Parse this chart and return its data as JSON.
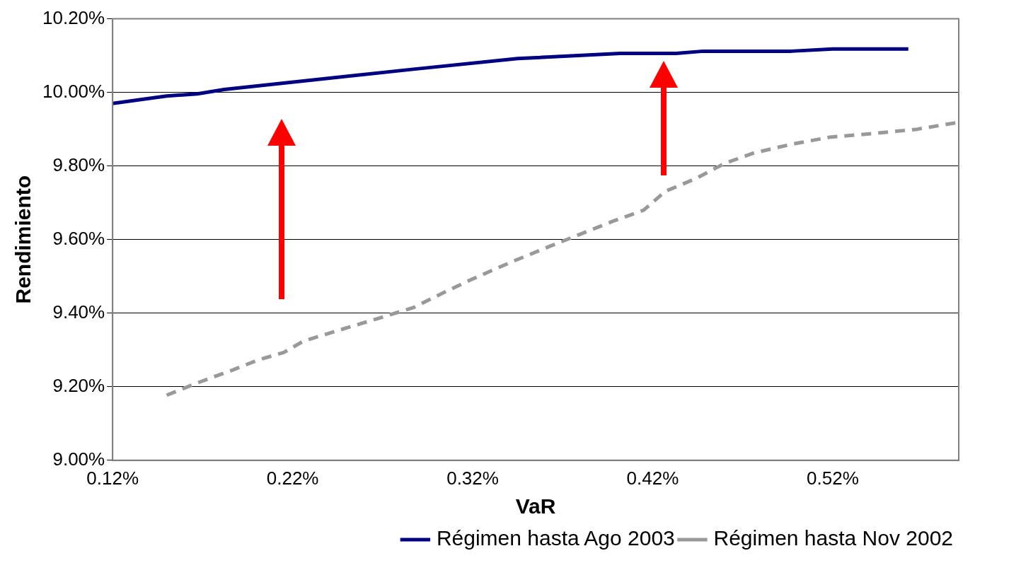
{
  "chart_data": {
    "type": "line",
    "xlabel": "VaR",
    "ylabel": "Rendimiento",
    "xlim": [
      0.12,
      0.59
    ],
    "xticks": [
      {
        "value": 0.12,
        "label": "0.12%"
      },
      {
        "value": 0.22,
        "label": "0.22%"
      },
      {
        "value": 0.32,
        "label": "0.32%"
      },
      {
        "value": 0.42,
        "label": "0.42%"
      },
      {
        "value": 0.52,
        "label": "0.52%"
      }
    ],
    "ylim": [
      9.0,
      10.2
    ],
    "yticks": [
      {
        "value": 9.0,
        "label": "9.00%"
      },
      {
        "value": 9.2,
        "label": "9.20%"
      },
      {
        "value": 9.4,
        "label": "9.40%"
      },
      {
        "value": 9.6,
        "label": "9.60%"
      },
      {
        "value": 9.8,
        "label": "9.80%"
      },
      {
        "value": 10.0,
        "label": "10.00%"
      },
      {
        "value": 10.2,
        "label": "10.20%"
      }
    ],
    "grid": "y",
    "legend": "bottom right",
    "marker": "none",
    "series": [
      {
        "name": "Régimen hasta Ago 2003",
        "color": "#000080",
        "line_style": "solid",
        "x": [
          0.12,
          0.135,
          0.15,
          0.167,
          0.182,
          0.287,
          0.345,
          0.402,
          0.433,
          0.448,
          0.497,
          0.52,
          0.562
        ],
        "values": [
          9.97,
          9.98,
          9.99,
          9.996,
          10.008,
          10.063,
          10.092,
          10.106,
          10.106,
          10.112,
          10.112,
          10.118,
          10.118
        ]
      },
      {
        "name": "Régimen hasta Nov 2002",
        "color": "#999999",
        "line_style": "dashed",
        "x": [
          0.15,
          0.168,
          0.187,
          0.201,
          0.215,
          0.226,
          0.246,
          0.267,
          0.287,
          0.304,
          0.32,
          0.341,
          0.361,
          0.382,
          0.398,
          0.415,
          0.427,
          0.444,
          0.46,
          0.476,
          0.497,
          0.518,
          0.542,
          0.567,
          0.589
        ],
        "values": [
          9.177,
          9.212,
          9.246,
          9.273,
          9.293,
          9.324,
          9.354,
          9.385,
          9.415,
          9.456,
          9.493,
          9.538,
          9.578,
          9.619,
          9.65,
          9.68,
          9.731,
          9.766,
          9.807,
          9.835,
          9.859,
          9.878,
          9.888,
          9.9,
          9.918
        ]
      }
    ]
  }
}
